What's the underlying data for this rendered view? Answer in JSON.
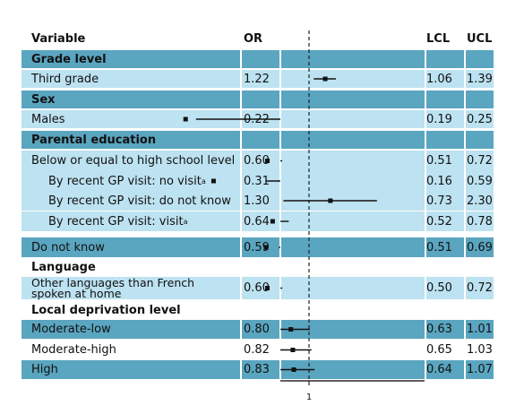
{
  "colors": {
    "section": "#5aa5c0",
    "row_dark": "#5aa5c0",
    "row_light": "#bde2f1",
    "marker": "#111111",
    "refline": "#222222"
  },
  "headers": {
    "variable": "Variable",
    "or": "OR",
    "lcl": "LCL",
    "ucl": "UCL"
  },
  "rows": [
    {
      "kind": "section",
      "label": "Grade level",
      "bg": "dark"
    },
    {
      "kind": "data",
      "label": "Third grade",
      "or": "1.22",
      "lcl": "1.06",
      "ucl": "1.39",
      "bg": "light"
    },
    {
      "kind": "section",
      "label": "Sex",
      "bg": "dark"
    },
    {
      "kind": "data",
      "label": "Males",
      "or": "0.22",
      "lcl": "0.19",
      "ucl": "0.25",
      "bg": "light"
    },
    {
      "kind": "section",
      "label": "Parental education",
      "bg": "dark"
    },
    {
      "kind": "data",
      "label": "Below or equal to high school level",
      "or": "0.60",
      "lcl": "0.51",
      "ucl": "0.72",
      "bg": "light"
    },
    {
      "kind": "data",
      "label": "By recent GP visit: no visit",
      "sup": "a",
      "indent": true,
      "or": "0.31",
      "lcl": "0.16",
      "ucl": "0.59",
      "bg": "light"
    },
    {
      "kind": "data",
      "label": "By recent GP visit: do not know",
      "indent": true,
      "or": "1.30",
      "lcl": "0.73",
      "ucl": "2.30",
      "bg": "light"
    },
    {
      "kind": "data",
      "label": "By recent GP visit: visit",
      "sup": "a",
      "indent": true,
      "or": "0.64",
      "lcl": "0.52",
      "ucl": "0.78",
      "bg": "light"
    },
    {
      "kind": "data",
      "label": "Do not know",
      "or": "0.59",
      "lcl": "0.51",
      "ucl": "0.69",
      "bg": "dark"
    },
    {
      "kind": "section",
      "label": "Language",
      "bg": "none"
    },
    {
      "kind": "data",
      "label": "Other languages than French spoken at home",
      "multi": true,
      "or": "0.60",
      "lcl": "0.50",
      "ucl": "0.72",
      "bg": "light"
    },
    {
      "kind": "section",
      "label": "Local deprivation level",
      "bg": "none"
    },
    {
      "kind": "data",
      "label": "Moderate-low",
      "or": "0.80",
      "lcl": "0.63",
      "ucl": "1.01",
      "bg": "dark"
    },
    {
      "kind": "data",
      "label": "Moderate-high",
      "or": "0.82",
      "lcl": "0.65",
      "ucl": "1.03",
      "bg": "none"
    },
    {
      "kind": "data",
      "label": "High",
      "or": "0.83",
      "lcl": "0.64",
      "ucl": "1.07",
      "bg": "dark"
    }
  ],
  "chart_data": {
    "type": "forest",
    "x_scale": "log",
    "reference_line": 1,
    "xtick_labels": [
      "1"
    ],
    "columns": [
      "Variable",
      "OR",
      "LCL",
      "UCL"
    ],
    "series": [
      {
        "label": "Third grade",
        "or": 1.22,
        "lcl": 1.06,
        "ucl": 1.39
      },
      {
        "label": "Males",
        "or": 0.22,
        "lcl": 0.19,
        "ucl": 0.25
      },
      {
        "label": "Below or equal to high school level",
        "or": 0.6,
        "lcl": 0.51,
        "ucl": 0.72
      },
      {
        "label": "By recent GP visit: no visit",
        "or": 0.31,
        "lcl": 0.16,
        "ucl": 0.59
      },
      {
        "label": "By recent GP visit: do not know",
        "or": 1.3,
        "lcl": 0.73,
        "ucl": 2.3
      },
      {
        "label": "By recent GP visit: visit",
        "or": 0.64,
        "lcl": 0.52,
        "ucl": 0.78
      },
      {
        "label": "Do not know",
        "or": 0.59,
        "lcl": 0.51,
        "ucl": 0.69
      },
      {
        "label": "Other languages than French spoken at home",
        "or": 0.6,
        "lcl": 0.5,
        "ucl": 0.72
      },
      {
        "label": "Moderate-low",
        "or": 0.8,
        "lcl": 0.63,
        "ucl": 1.01
      },
      {
        "label": "Moderate-high",
        "or": 0.82,
        "lcl": 0.65,
        "ucl": 1.03
      },
      {
        "label": "High",
        "or": 0.83,
        "lcl": 0.64,
        "ucl": 1.07
      }
    ]
  }
}
